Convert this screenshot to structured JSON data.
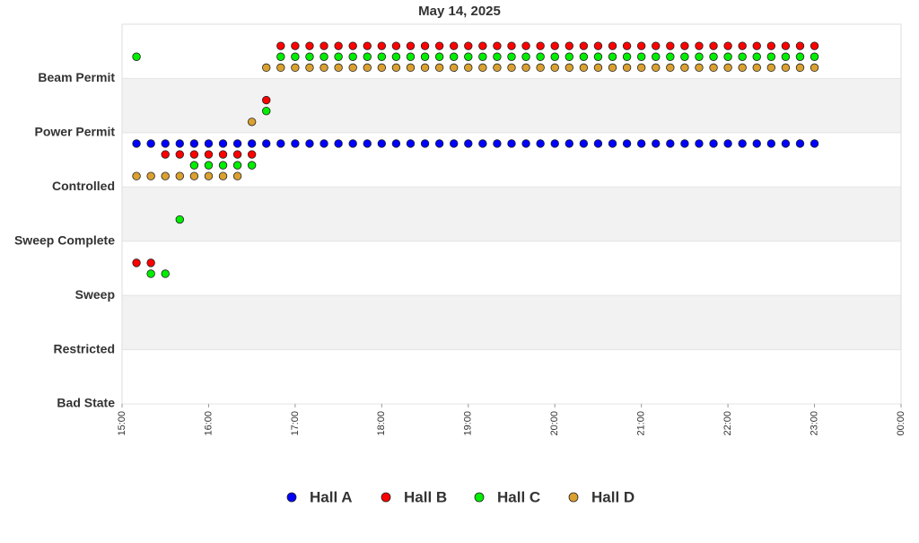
{
  "chart_data": {
    "type": "scatter",
    "title": "May 14, 2025",
    "x": [
      "15:10",
      "15:20",
      "15:30",
      "15:40",
      "15:50",
      "16:00",
      "16:10",
      "16:20",
      "16:30",
      "16:40",
      "16:50",
      "17:00",
      "17:10",
      "17:20",
      "17:30",
      "17:40",
      "17:50",
      "18:00",
      "18:10",
      "18:20",
      "18:30",
      "18:40",
      "18:50",
      "19:00",
      "19:10",
      "19:20",
      "19:30",
      "19:40",
      "19:50",
      "20:00",
      "20:10",
      "20:20",
      "20:30",
      "20:40",
      "20:50",
      "21:00",
      "21:10",
      "21:20",
      "21:30",
      "21:40",
      "21:50",
      "22:00",
      "22:10",
      "22:20",
      "22:30",
      "22:40",
      "22:50",
      "23:00"
    ],
    "xlim": [
      "15:00",
      "00:00"
    ],
    "xticks": [
      "15:00",
      "16:00",
      "17:00",
      "18:00",
      "19:00",
      "20:00",
      "21:00",
      "22:00",
      "23:00",
      "00:00"
    ],
    "ylim": [
      0,
      7
    ],
    "yticks": [
      {
        "value": 0,
        "label": "Bad State"
      },
      {
        "value": 1,
        "label": "Restricted"
      },
      {
        "value": 2,
        "label": "Sweep"
      },
      {
        "value": 3,
        "label": "Sweep Complete"
      },
      {
        "value": 4,
        "label": "Controlled"
      },
      {
        "value": 5,
        "label": "Power Permit"
      },
      {
        "value": 6,
        "label": "Beam Permit"
      }
    ],
    "series": [
      {
        "name": "Hall A",
        "color": "#0000ff",
        "values": [
          4,
          4,
          4,
          4,
          4,
          4,
          4,
          4,
          4,
          4,
          4,
          4,
          4,
          4,
          4,
          4,
          4,
          4,
          4,
          4,
          4,
          4,
          4,
          4,
          4,
          4,
          4,
          4,
          4,
          4,
          4,
          4,
          4,
          4,
          4,
          4,
          4,
          4,
          4,
          4,
          4,
          4,
          4,
          4,
          4,
          4,
          4,
          4
        ]
      },
      {
        "name": "Hall B",
        "color": "#ff0000",
        "values": [
          2,
          2,
          4,
          4,
          4,
          4,
          4,
          4,
          4,
          5,
          6,
          6,
          6,
          6,
          6,
          6,
          6,
          6,
          6,
          6,
          6,
          6,
          6,
          6,
          6,
          6,
          6,
          6,
          6,
          6,
          6,
          6,
          6,
          6,
          6,
          6,
          6,
          6,
          6,
          6,
          6,
          6,
          6,
          6,
          6,
          6,
          6,
          6
        ]
      },
      {
        "name": "Hall C",
        "color": "#00ee00",
        "values": [
          6,
          2,
          2,
          3,
          4,
          4,
          4,
          4,
          4,
          5,
          6,
          6,
          6,
          6,
          6,
          6,
          6,
          6,
          6,
          6,
          6,
          6,
          6,
          6,
          6,
          6,
          6,
          6,
          6,
          6,
          6,
          6,
          6,
          6,
          6,
          6,
          6,
          6,
          6,
          6,
          6,
          6,
          6,
          6,
          6,
          6,
          6,
          6
        ]
      },
      {
        "name": "Hall D",
        "color": "#daa030",
        "values": [
          4,
          4,
          4,
          4,
          4,
          4,
          4,
          4,
          5,
          6,
          6,
          6,
          6,
          6,
          6,
          6,
          6,
          6,
          6,
          6,
          6,
          6,
          6,
          6,
          6,
          6,
          6,
          6,
          6,
          6,
          6,
          6,
          6,
          6,
          6,
          6,
          6,
          6,
          6,
          6,
          6,
          6,
          6,
          6,
          6,
          6,
          6,
          6
        ]
      }
    ]
  }
}
